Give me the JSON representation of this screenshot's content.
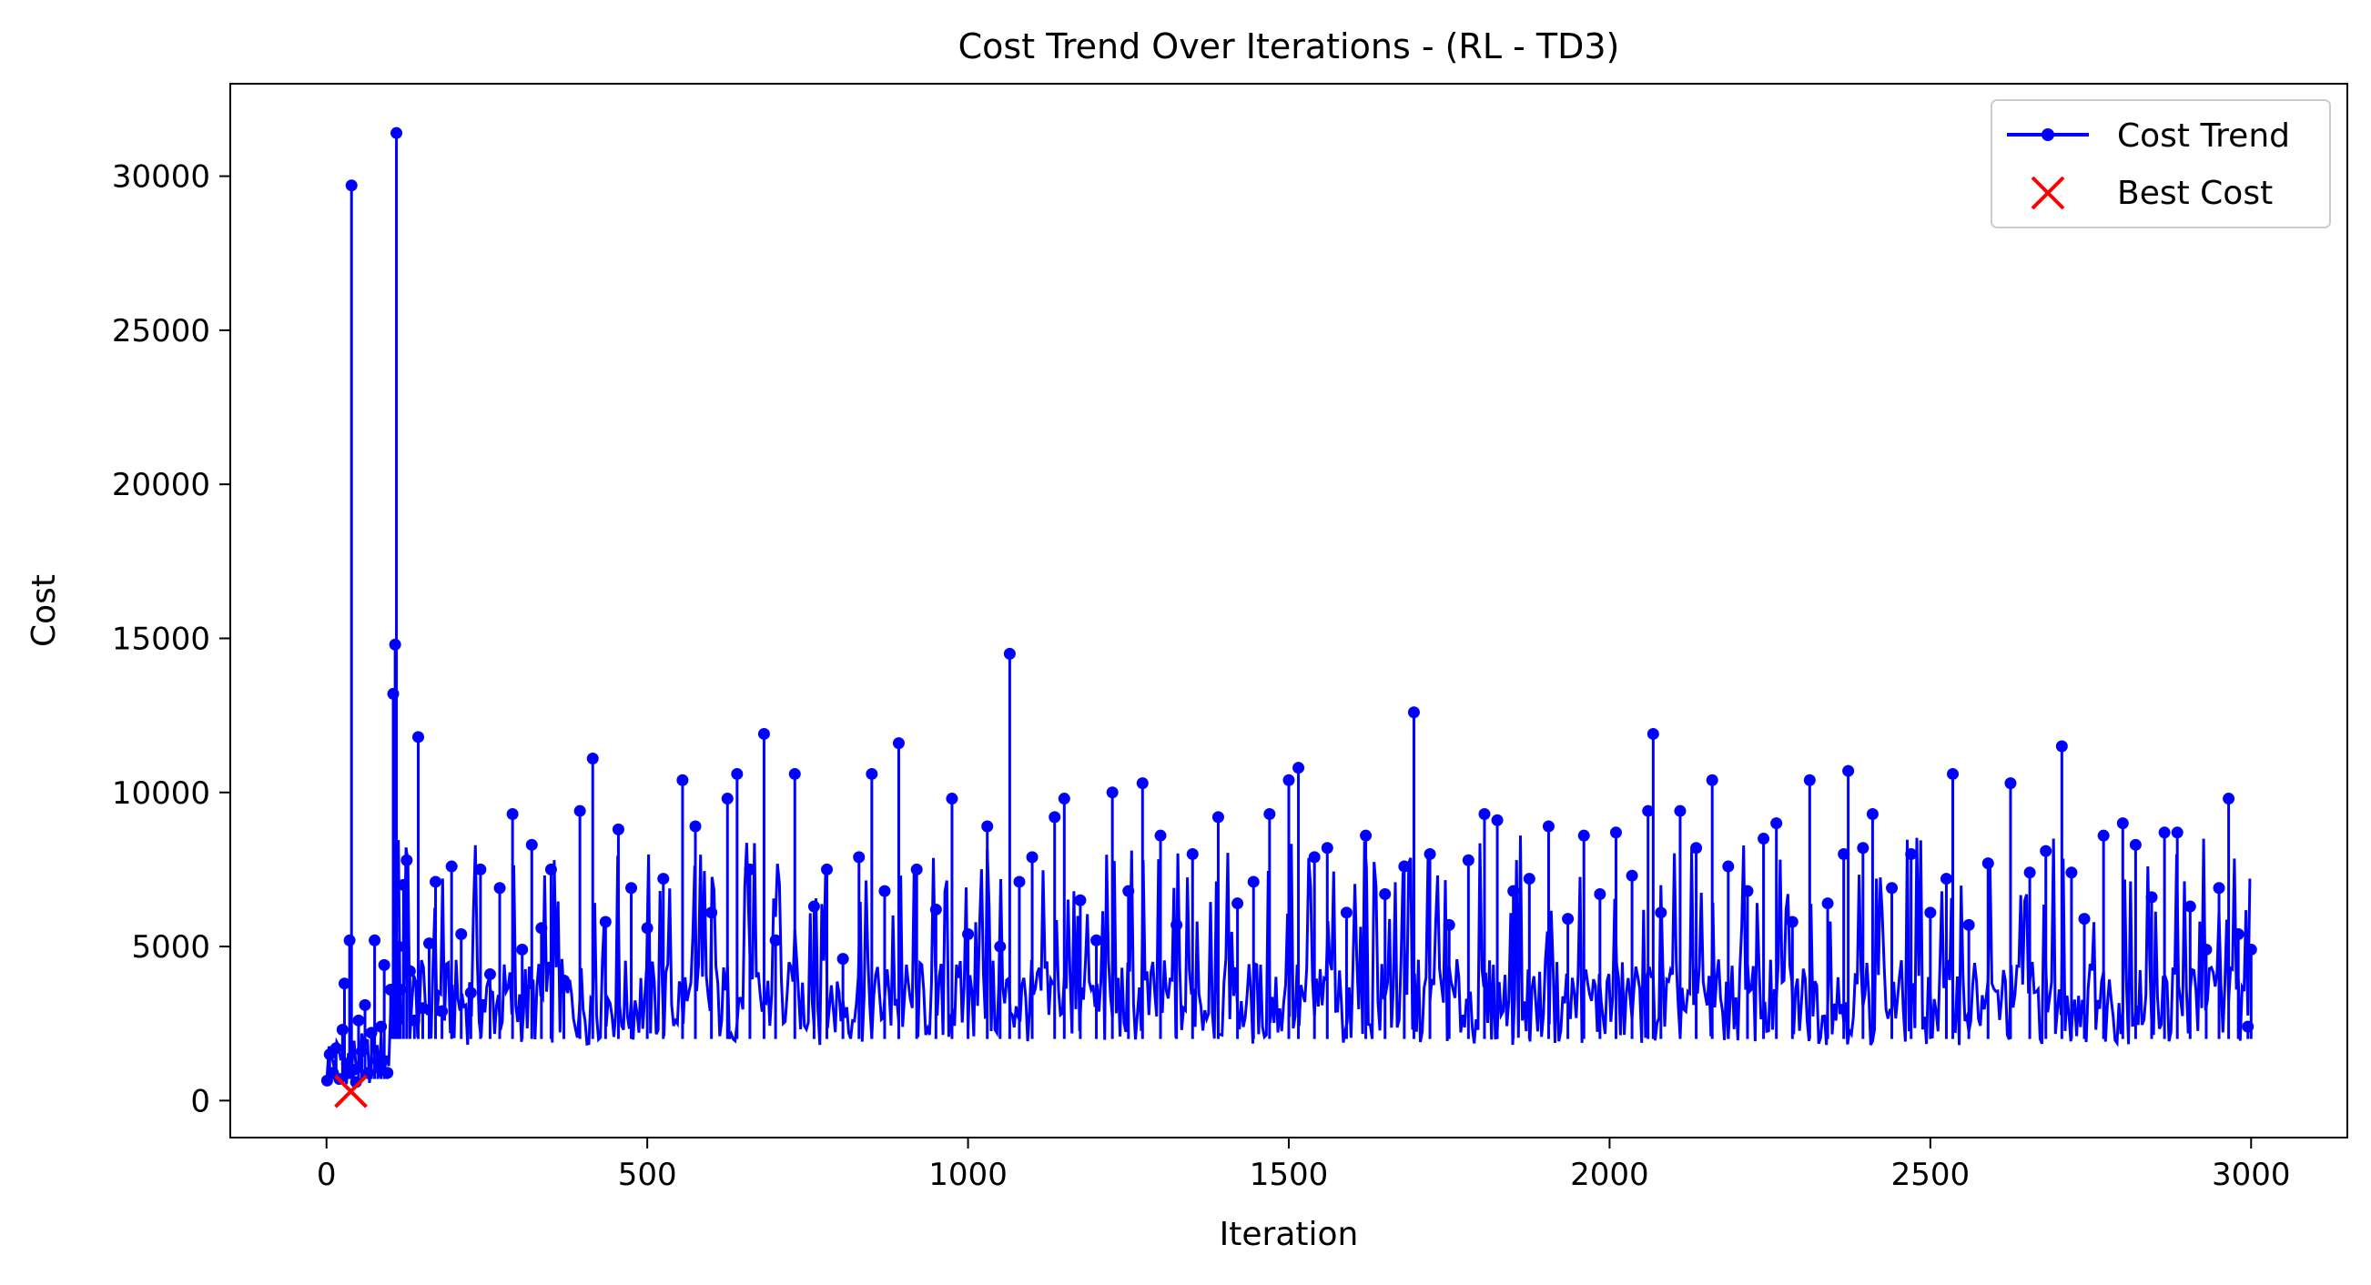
{
  "chart_data": {
    "type": "line",
    "title": "Cost Trend Over Iterations - (RL - TD3)",
    "xlabel": "Iteration",
    "ylabel": "Cost",
    "xlim": [
      -150,
      3150
    ],
    "ylim": [
      -1200,
      33000
    ],
    "xticks": [
      0,
      500,
      1000,
      1500,
      2000,
      2500,
      3000
    ],
    "yticks": [
      0,
      5000,
      10000,
      15000,
      20000,
      25000,
      30000
    ],
    "grid": false,
    "legend": {
      "placement": "top-right",
      "entries": [
        "Cost Trend",
        "Best Cost"
      ]
    },
    "series": [
      {
        "name": "Cost Trend",
        "color": "#0000ff",
        "marker": "dot",
        "x_start": 1,
        "x_end": 3000,
        "points": [
          [
            1,
            650
          ],
          [
            5,
            1500
          ],
          [
            10,
            900
          ],
          [
            15,
            1700
          ],
          [
            20,
            700
          ],
          [
            25,
            2300
          ],
          [
            28,
            3800
          ],
          [
            32,
            1200
          ],
          [
            36,
            5200
          ],
          [
            39,
            29700
          ],
          [
            42,
            1000
          ],
          [
            46,
            600
          ],
          [
            50,
            2600
          ],
          [
            55,
            1600
          ],
          [
            60,
            3100
          ],
          [
            65,
            900
          ],
          [
            70,
            2200
          ],
          [
            75,
            5200
          ],
          [
            80,
            1300
          ],
          [
            85,
            2400
          ],
          [
            90,
            4400
          ],
          [
            95,
            900
          ],
          [
            100,
            3600
          ],
          [
            104,
            13200
          ],
          [
            107,
            14800
          ],
          [
            109,
            31400
          ],
          [
            112,
            5000
          ],
          [
            115,
            3600
          ],
          [
            120,
            7000
          ],
          [
            125,
            7800
          ],
          [
            130,
            4200
          ],
          [
            137,
            2600
          ],
          [
            143,
            11800
          ],
          [
            150,
            3000
          ],
          [
            160,
            5100
          ],
          [
            170,
            7100
          ],
          [
            180,
            2900
          ],
          [
            195,
            7600
          ],
          [
            210,
            5400
          ],
          [
            225,
            3500
          ],
          [
            240,
            7500
          ],
          [
            255,
            4100
          ],
          [
            270,
            6900
          ],
          [
            290,
            9300
          ],
          [
            305,
            4900
          ],
          [
            320,
            8300
          ],
          [
            335,
            5600
          ],
          [
            350,
            7500
          ],
          [
            370,
            3900
          ],
          [
            395,
            9400
          ],
          [
            415,
            11100
          ],
          [
            435,
            5800
          ],
          [
            455,
            8800
          ],
          [
            475,
            6900
          ],
          [
            500,
            5600
          ],
          [
            525,
            7200
          ],
          [
            555,
            10400
          ],
          [
            575,
            8900
          ],
          [
            600,
            6100
          ],
          [
            625,
            9800
          ],
          [
            640,
            10600
          ],
          [
            660,
            7500
          ],
          [
            682,
            11900
          ],
          [
            700,
            5200
          ],
          [
            730,
            10600
          ],
          [
            760,
            6300
          ],
          [
            780,
            7500
          ],
          [
            805,
            4600
          ],
          [
            830,
            7900
          ],
          [
            850,
            10600
          ],
          [
            870,
            6800
          ],
          [
            892,
            11600
          ],
          [
            920,
            7500
          ],
          [
            950,
            6200
          ],
          [
            975,
            9800
          ],
          [
            1000,
            5400
          ],
          [
            1030,
            8900
          ],
          [
            1050,
            5000
          ],
          [
            1065,
            14500
          ],
          [
            1080,
            7100
          ],
          [
            1100,
            7900
          ],
          [
            1135,
            9200
          ],
          [
            1150,
            9800
          ],
          [
            1175,
            6500
          ],
          [
            1200,
            5200
          ],
          [
            1225,
            10000
          ],
          [
            1250,
            6800
          ],
          [
            1272,
            10300
          ],
          [
            1300,
            8600
          ],
          [
            1325,
            5700
          ],
          [
            1350,
            8000
          ],
          [
            1390,
            9200
          ],
          [
            1420,
            6400
          ],
          [
            1445,
            7100
          ],
          [
            1470,
            9300
          ],
          [
            1500,
            10400
          ],
          [
            1515,
            10800
          ],
          [
            1540,
            7900
          ],
          [
            1560,
            8200
          ],
          [
            1590,
            6100
          ],
          [
            1620,
            8600
          ],
          [
            1650,
            6700
          ],
          [
            1680,
            7600
          ],
          [
            1695,
            12600
          ],
          [
            1720,
            8000
          ],
          [
            1750,
            5700
          ],
          [
            1780,
            7800
          ],
          [
            1805,
            9300
          ],
          [
            1825,
            9100
          ],
          [
            1850,
            6800
          ],
          [
            1875,
            7200
          ],
          [
            1905,
            8900
          ],
          [
            1935,
            5900
          ],
          [
            1960,
            8600
          ],
          [
            1985,
            6700
          ],
          [
            2010,
            8700
          ],
          [
            2035,
            7300
          ],
          [
            2060,
            9400
          ],
          [
            2068,
            11900
          ],
          [
            2080,
            6100
          ],
          [
            2110,
            9400
          ],
          [
            2135,
            8200
          ],
          [
            2160,
            10400
          ],
          [
            2185,
            7600
          ],
          [
            2215,
            6800
          ],
          [
            2240,
            8500
          ],
          [
            2260,
            9000
          ],
          [
            2285,
            5800
          ],
          [
            2312,
            10400
          ],
          [
            2340,
            6400
          ],
          [
            2365,
            8000
          ],
          [
            2372,
            10700
          ],
          [
            2395,
            8200
          ],
          [
            2410,
            9300
          ],
          [
            2440,
            6900
          ],
          [
            2470,
            8000
          ],
          [
            2500,
            6100
          ],
          [
            2525,
            7200
          ],
          [
            2535,
            10600
          ],
          [
            2560,
            5700
          ],
          [
            2590,
            7700
          ],
          [
            2625,
            10300
          ],
          [
            2655,
            7400
          ],
          [
            2680,
            8100
          ],
          [
            2705,
            11500
          ],
          [
            2720,
            7400
          ],
          [
            2740,
            5900
          ],
          [
            2770,
            8600
          ],
          [
            2800,
            9000
          ],
          [
            2820,
            8300
          ],
          [
            2845,
            6600
          ],
          [
            2865,
            8700
          ],
          [
            2885,
            8700
          ],
          [
            2905,
            6300
          ],
          [
            2930,
            4900
          ],
          [
            2950,
            6900
          ],
          [
            2965,
            9800
          ],
          [
            2980,
            5400
          ],
          [
            2995,
            2400
          ],
          [
            3000,
            4900
          ]
        ]
      }
    ],
    "best_cost": {
      "name": "Best Cost",
      "color": "#ff0000",
      "marker": "x",
      "x": 38,
      "y": 300
    }
  }
}
